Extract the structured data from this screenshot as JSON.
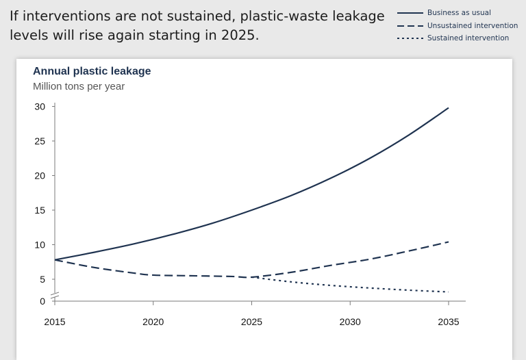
{
  "headline": "If interventions are not sustained, plastic-waste leakage levels will rise again starting in 2025.",
  "colors": {
    "series": "#1f3350",
    "axis": "#7a7a7a",
    "background": "#e9e9e9",
    "card": "#ffffff"
  },
  "chart_data": {
    "type": "line",
    "title": "Annual plastic leakage",
    "subtitle": "Million tons per year",
    "xlabel": "",
    "ylabel": "",
    "xlim": [
      2015,
      2035
    ],
    "ylim": [
      0,
      30
    ],
    "x_ticks": [
      2015,
      2020,
      2025,
      2030,
      2035
    ],
    "y_ticks": [
      0,
      5,
      10,
      15,
      20,
      25,
      30
    ],
    "grid": false,
    "legend_position": "top-right",
    "series": [
      {
        "name": "Business as usual",
        "style": "solid",
        "x": [
          2015,
          2017,
          2019,
          2021,
          2023,
          2025,
          2027,
          2029,
          2031,
          2033,
          2035
        ],
        "y": [
          7.8,
          8.9,
          10.1,
          11.5,
          13.1,
          15.0,
          17.1,
          19.6,
          22.5,
          25.9,
          29.8
        ]
      },
      {
        "name": "Unsustained intervention",
        "style": "dashed",
        "x": [
          2015,
          2017,
          2019,
          2020,
          2022,
          2024,
          2025,
          2027,
          2029,
          2031,
          2033,
          2035
        ],
        "y": [
          7.8,
          6.7,
          5.9,
          5.6,
          5.5,
          5.4,
          5.3,
          6.0,
          7.0,
          7.9,
          9.1,
          10.4
        ]
      },
      {
        "name": "Sustained intervention",
        "style": "dotted",
        "x": [
          2025,
          2027,
          2029,
          2031,
          2033,
          2035
        ],
        "y": [
          5.3,
          4.4,
          3.6,
          3.0,
          2.5,
          2.1
        ]
      }
    ]
  }
}
